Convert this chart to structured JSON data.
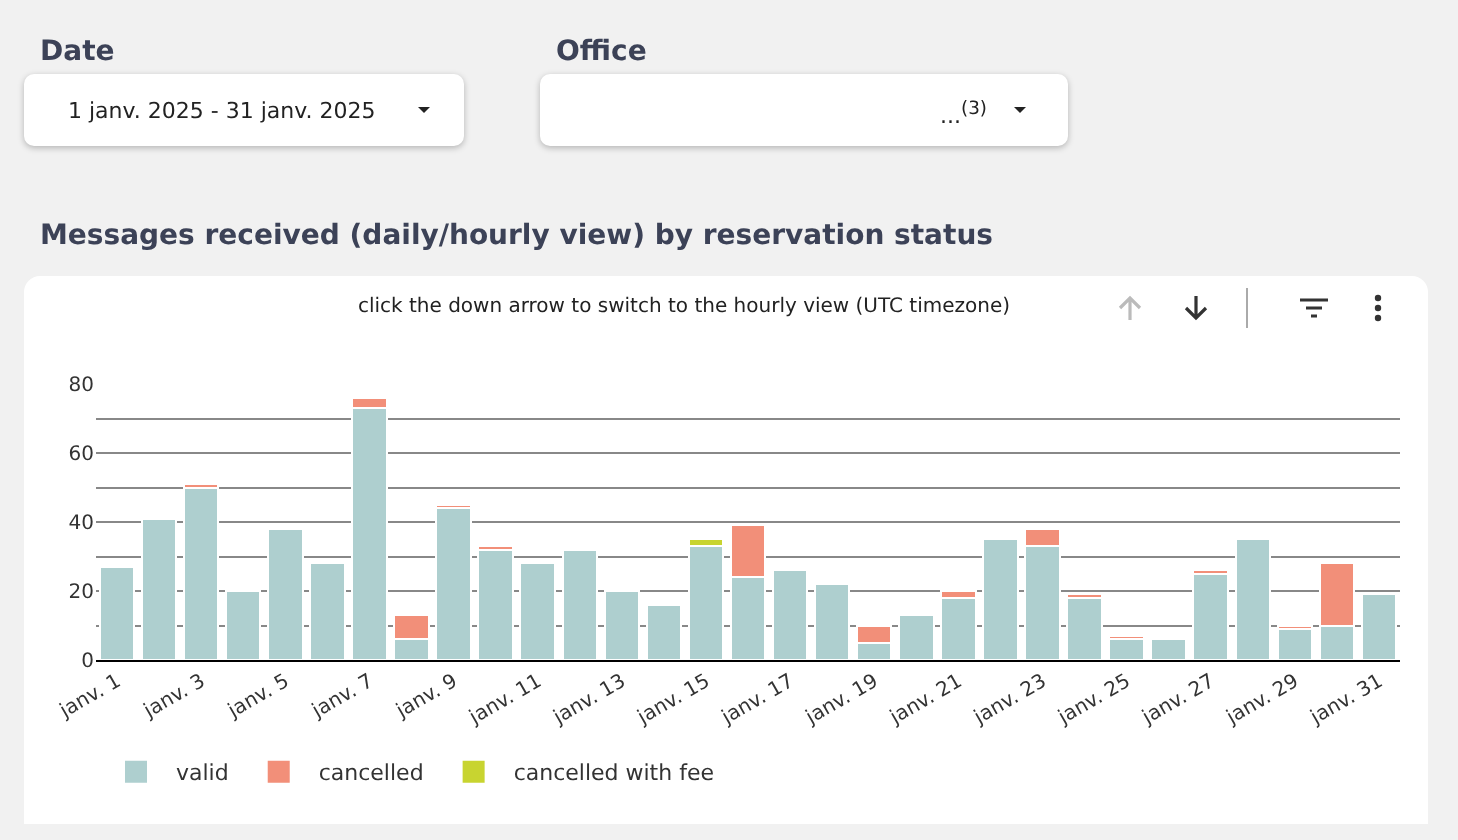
{
  "chart_data": {
    "type": "bar",
    "title": "Messages received (daily/hourly view) by reservation status",
    "subtitle": "click the down arrow to switch to the hourly view (UTC timezone)",
    "annotations": [
      "Date",
      "1 janv. 2025 - 31 janv. 2025",
      "Office",
      "...$^{(3)}$"
    ],
    "categories": [
      "janv. 1",
      null,
      "janv. 3",
      null,
      "janv. 5",
      null,
      "janv. 7",
      null,
      "janv. 9",
      null,
      "janv. 11",
      null,
      "janv. 13",
      null,
      "janv. 15",
      null,
      "janv. 17",
      null,
      "janv. 19",
      null,
      "janv. 21",
      null,
      "janv. 23",
      null,
      "janv. 25",
      null,
      "janv. 27",
      null,
      "janv. 29",
      null,
      "janv. 31"
    ],
    "stacked": true,
    "series": [
      {
        "name": "valid",
        "color": "#aecfcf",
        "values": [
          27,
          41,
          50,
          20,
          38,
          28,
          73,
          6,
          44,
          32,
          28,
          32,
          20,
          16,
          33,
          24,
          26,
          22,
          5,
          13,
          18,
          35,
          33,
          18,
          6,
          6,
          25,
          35,
          9,
          10,
          19
        ]
      },
      {
        "name": "cancelled",
        "color": "#f28f79",
        "values": [
          null,
          null,
          1,
          null,
          null,
          null,
          3,
          7,
          1,
          1,
          null,
          null,
          null,
          null,
          null,
          15,
          null,
          null,
          5,
          null,
          2,
          null,
          5,
          1,
          1,
          null,
          1,
          null,
          1,
          18,
          null
        ]
      },
      {
        "name": "cancelled with fee",
        "color": "#c8d430",
        "values": [
          null,
          null,
          null,
          null,
          null,
          null,
          null,
          null,
          null,
          null,
          null,
          null,
          null,
          null,
          2,
          null,
          null,
          null,
          null,
          null,
          null,
          null,
          null,
          null,
          null,
          null,
          null,
          null,
          null,
          null,
          null
        ]
      }
    ],
    "ylim": [
      0,
      80
    ],
    "yticks": [
      0,
      {
        "value": 10,
        "label": null
      },
      20,
      {
        "value": 30,
        "label": null
      },
      40,
      {
        "value": 50,
        "label": null
      },
      60,
      {
        "value": 70,
        "label": null
      },
      80
    ],
    "grid": "y",
    "legend": "bottom left"
  }
}
